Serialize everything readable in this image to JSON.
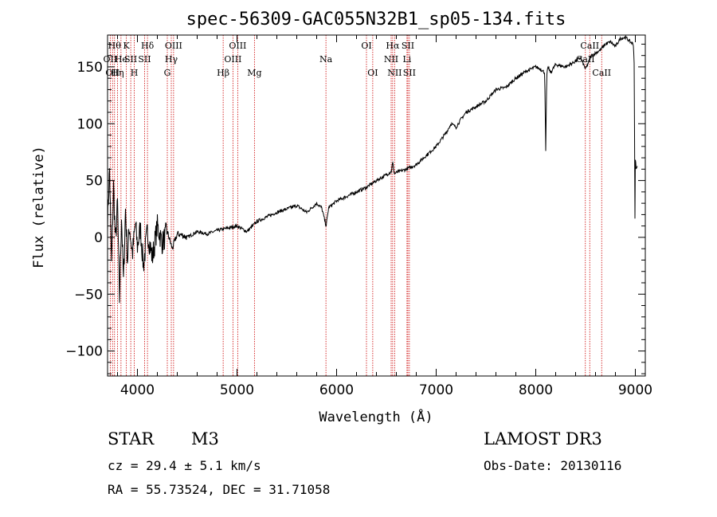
{
  "chart_data": {
    "type": "line",
    "title": "spec-56309-GAC055N32B1_sp05-134.fits",
    "xlabel": "Wavelength (Å)",
    "ylabel": "Flux (relative)",
    "xlim": [
      3700,
      9100
    ],
    "ylim": [
      -122,
      178
    ],
    "xticks": [
      4000,
      5000,
      6000,
      7000,
      8000,
      9000
    ],
    "yticks": [
      -100,
      -50,
      0,
      50,
      100,
      150
    ],
    "series": [
      {
        "name": "flux",
        "x": [
          3700,
          3720,
          3740,
          3760,
          3780,
          3800,
          3820,
          3840,
          3860,
          3880,
          3900,
          3920,
          3950,
          3980,
          4000,
          4030,
          4060,
          4100,
          4150,
          4200,
          4250,
          4300,
          4350,
          4400,
          4450,
          4500,
          4600,
          4700,
          4800,
          4900,
          5000,
          5100,
          5200,
          5300,
          5400,
          5500,
          5600,
          5700,
          5800,
          5850,
          5895,
          5920,
          6000,
          6100,
          6200,
          6300,
          6400,
          6500,
          6550,
          6563,
          6580,
          6600,
          6700,
          6800,
          6900,
          6950,
          7000,
          7050,
          7100,
          7150,
          7200,
          7250,
          7300,
          7400,
          7500,
          7600,
          7700,
          7800,
          7900,
          8000,
          8050,
          8090,
          8100,
          8110,
          8120,
          8150,
          8200,
          8300,
          8400,
          8450,
          8500,
          8560,
          8600,
          8650,
          8700,
          8750,
          8800,
          8850,
          8900,
          8950,
          8980,
          8990,
          8995,
          9000,
          9010,
          9020
        ],
        "y": [
          15,
          60,
          -25,
          45,
          -5,
          30,
          -55,
          20,
          -40,
          25,
          -20,
          10,
          -15,
          12,
          -8,
          8,
          -25,
          5,
          -18,
          10,
          -5,
          5,
          -10,
          3,
          2,
          0,
          5,
          3,
          6,
          8,
          10,
          5,
          14,
          18,
          22,
          25,
          28,
          22,
          30,
          26,
          10,
          26,
          32,
          36,
          40,
          44,
          50,
          55,
          58,
          66,
          56,
          57,
          60,
          64,
          72,
          76,
          80,
          86,
          92,
          100,
          97,
          104,
          110,
          115,
          120,
          130,
          132,
          140,
          146,
          150,
          148,
          145,
          75,
          140,
          150,
          145,
          152,
          150,
          155,
          158,
          148,
          160,
          162,
          165,
          170,
          172,
          168,
          175,
          176,
          172,
          170,
          150,
          2,
          68,
          60,
          62
        ]
      }
    ],
    "line_markers": [
      {
        "wavelength": 3727,
        "label": "OII",
        "row": 1
      },
      {
        "wavelength": 3750,
        "label": "OII",
        "row": 2
      },
      {
        "wavelength": 3770,
        "label": "Hθ",
        "row": 0
      },
      {
        "wavelength": 3800,
        "label": "Hη",
        "row": 2
      },
      {
        "wavelength": 3835,
        "label": "He",
        "row": 1
      },
      {
        "wavelength": 3889,
        "label": "K",
        "row": 0
      },
      {
        "wavelength": 3933,
        "label": "SII",
        "row": 1
      },
      {
        "wavelength": 3968,
        "label": "H",
        "row": 2
      },
      {
        "wavelength": 4101,
        "label": "Hδ",
        "row": 0
      },
      {
        "wavelength": 4072,
        "label": "SII",
        "row": 1
      },
      {
        "wavelength": 4300,
        "label": "G",
        "row": 2
      },
      {
        "wavelength": 4340,
        "label": "Hγ",
        "row": 1
      },
      {
        "wavelength": 4363,
        "label": "OIII",
        "row": 0
      },
      {
        "wavelength": 4861,
        "label": "Hβ",
        "row": 2
      },
      {
        "wavelength": 4959,
        "label": "OIII",
        "row": 1
      },
      {
        "wavelength": 5007,
        "label": "OIII",
        "row": 0
      },
      {
        "wavelength": 5175,
        "label": "Mg",
        "row": 2
      },
      {
        "wavelength": 5893,
        "label": "Na",
        "row": 1
      },
      {
        "wavelength": 6300,
        "label": "OI",
        "row": 0
      },
      {
        "wavelength": 6363,
        "label": "OI",
        "row": 2
      },
      {
        "wavelength": 6548,
        "label": "NII",
        "row": 1
      },
      {
        "wavelength": 6563,
        "label": "Hα",
        "row": 0
      },
      {
        "wavelength": 6583,
        "label": "NII",
        "row": 2
      },
      {
        "wavelength": 6707,
        "label": "Li",
        "row": 1
      },
      {
        "wavelength": 6716,
        "label": "SII",
        "row": 0
      },
      {
        "wavelength": 6731,
        "label": "SII",
        "row": 2
      },
      {
        "wavelength": 8498,
        "label": "CaII",
        "row": 1
      },
      {
        "wavelength": 8542,
        "label": "CaII",
        "row": 0
      },
      {
        "wavelength": 8662,
        "label": "CaII",
        "row": 2
      }
    ]
  },
  "info": {
    "object_class": "STAR",
    "subclass": "M3",
    "survey": "LAMOST DR3",
    "redshift_line": "cz =  29.4 ± 5.1 km/s",
    "obs_date": "Obs-Date: 20130116",
    "coords": "RA =  55.73524, DEC =  31.71058"
  },
  "colors": {
    "line_marker": "#cc0000",
    "spectrum": "#000000"
  }
}
